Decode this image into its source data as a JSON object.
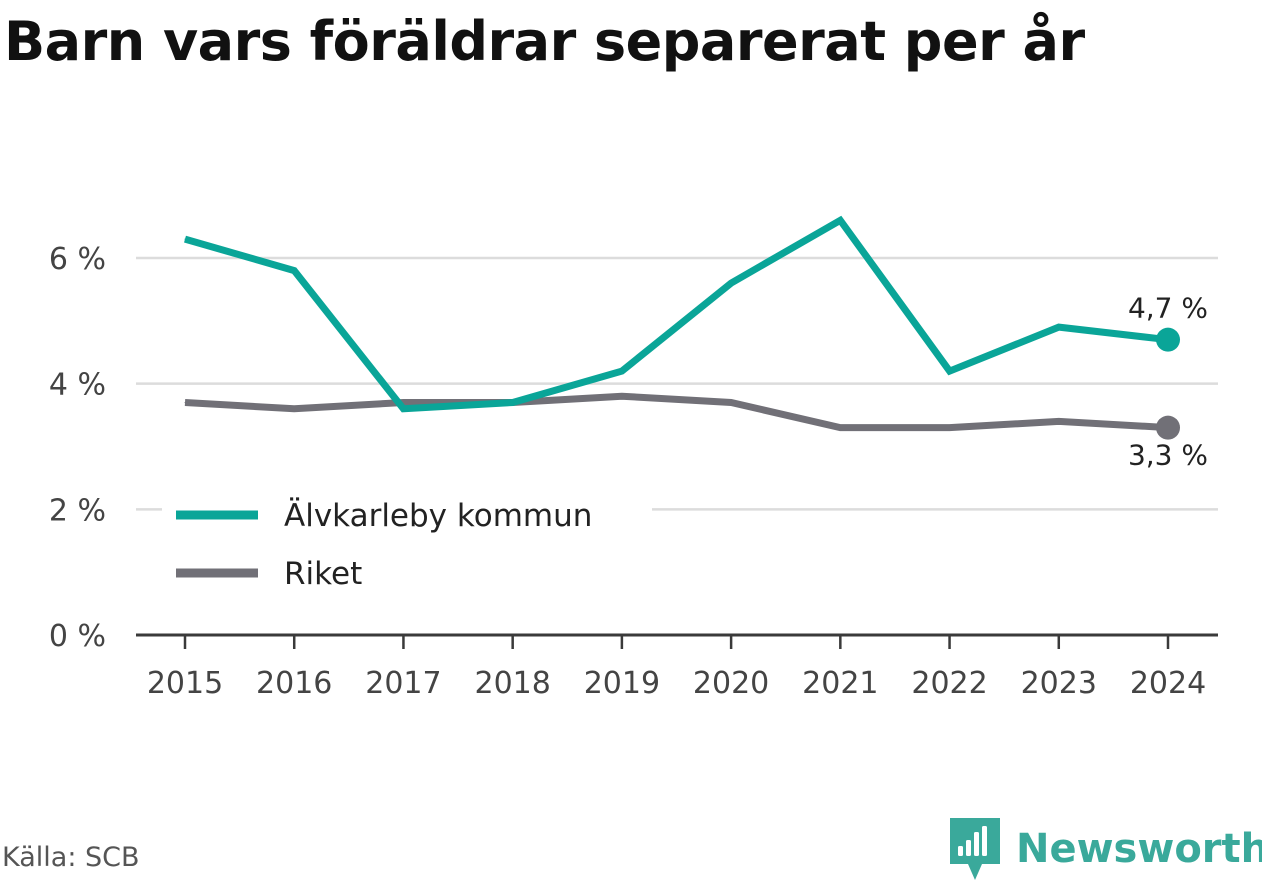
{
  "title": "Barn vars föräldrar separerat per år",
  "source": "Källa: SCB",
  "brand": {
    "name": "Newsworthy",
    "logo_icon": "bar-chart-icon",
    "color": "#3aa99b"
  },
  "chart_data": {
    "type": "line",
    "title": "Barn vars föräldrar separerat per år",
    "xlabel": "",
    "ylabel": "",
    "x": [
      "2015",
      "2016",
      "2017",
      "2018",
      "2019",
      "2020",
      "2021",
      "2022",
      "2023",
      "2024"
    ],
    "ylim": [
      0,
      7
    ],
    "yticks": [
      0,
      2,
      4,
      6
    ],
    "ytick_labels": [
      "0 %",
      "2 %",
      "4 %",
      "6 %"
    ],
    "grid": true,
    "legend_position": "bottom-left",
    "series": [
      {
        "name": "Älvkarleby kommun",
        "color": "#0aa598",
        "values": [
          6.3,
          5.8,
          3.6,
          3.7,
          4.2,
          5.6,
          6.6,
          4.2,
          4.9,
          4.7
        ],
        "end_label": "4,7 %"
      },
      {
        "name": "Riket",
        "color": "#717077",
        "values": [
          3.7,
          3.6,
          3.7,
          3.7,
          3.8,
          3.7,
          3.3,
          3.3,
          3.4,
          3.3
        ],
        "end_label": "3,3 %"
      }
    ]
  }
}
